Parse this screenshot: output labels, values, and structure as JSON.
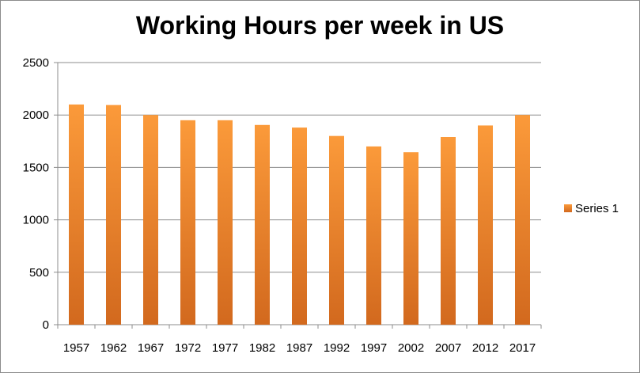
{
  "chart_data": {
    "type": "bar",
    "title": "Working Hours per week in US",
    "categories": [
      "1957",
      "1962",
      "1967",
      "1972",
      "1977",
      "1982",
      "1987",
      "1992",
      "1997",
      "2002",
      "2007",
      "2012",
      "2017"
    ],
    "series": [
      {
        "name": "Series 1",
        "values": [
          2100,
          2095,
          2000,
          1950,
          1950,
          1905,
          1880,
          1800,
          1700,
          1645,
          1790,
          1900,
          2000
        ]
      }
    ],
    "ylim": [
      0,
      2500
    ],
    "yticks": [
      "0",
      "500",
      "1000",
      "1500",
      "2000",
      "2500"
    ],
    "grid": true,
    "legend_position": "right",
    "colors": {
      "bar_top": "#fb9a3a",
      "bar_bottom": "#d2691e",
      "grid": "#8c8c8c",
      "frame": "#8c8c8c"
    }
  }
}
